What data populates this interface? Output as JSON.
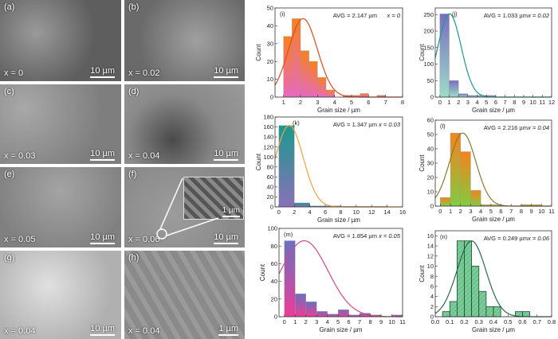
{
  "sem_panels": [
    {
      "id": "a",
      "label": "(a)",
      "x_text": "x = 0",
      "scale": "10 µm"
    },
    {
      "id": "b",
      "label": "(b)",
      "x_text": "x = 0.02",
      "scale": "10 µm"
    },
    {
      "id": "c",
      "label": "(c)",
      "x_text": "x = 0.03",
      "scale": "10 µm"
    },
    {
      "id": "d",
      "label": "(d)",
      "x_text": "x = 0.04",
      "scale": "10 µm"
    },
    {
      "id": "e",
      "label": "(e)",
      "x_text": "x = 0.05",
      "scale": "10 µm"
    },
    {
      "id": "f",
      "label": "(f)",
      "x_text": "x = 0.06",
      "scale": "10 µm",
      "inset_scale": "1 µm"
    },
    {
      "id": "g",
      "label": "(g)",
      "x_text": "x = 0.04",
      "scale": "10 µm"
    },
    {
      "id": "h",
      "label": "(h)",
      "x_text": "x = 0.04",
      "scale": "1 µm"
    }
  ],
  "chart_data": [
    {
      "type": "bar",
      "panel": "(i)",
      "avg": "AVG = 2.147 µm",
      "x_label": "x = 0",
      "xlabel": "Grain size / µm",
      "ylabel": "Count",
      "xlim": [
        0.5,
        8
      ],
      "ylim": [
        0,
        50
      ],
      "xticks": [
        1,
        2,
        3,
        4,
        5,
        6,
        7,
        8
      ],
      "yticks": [
        0,
        10,
        20,
        30,
        40,
        50
      ],
      "bin_start": 1,
      "bin_width": 0.5,
      "values": [
        34,
        44,
        26,
        20,
        11,
        4,
        0,
        1,
        1,
        2,
        0,
        1
      ],
      "fit": {
        "mean": 2.147,
        "sigma": 0.85,
        "peak": 44
      },
      "colors": {
        "top": "#f7821e",
        "bottom": "#e868c0",
        "curve": "#e04a20"
      }
    },
    {
      "type": "bar",
      "panel": "(j)",
      "avg": "AVG = 1.033 µm",
      "x_label": "x = 0.02",
      "xlabel": "Grain size / µm",
      "ylabel": "Count",
      "xlim": [
        -0.5,
        12
      ],
      "ylim": [
        0,
        270
      ],
      "xticks": [
        0,
        1,
        2,
        3,
        4,
        5,
        6,
        7,
        8,
        9,
        10,
        11,
        12
      ],
      "yticks": [
        0,
        50,
        100,
        150,
        200,
        250
      ],
      "bin_start": 0,
      "bin_width": 1,
      "values": [
        252,
        50,
        10,
        5,
        5,
        5
      ],
      "fit": {
        "mean": 1.033,
        "sigma": 1.25,
        "peak": 252
      },
      "colors": {
        "top": "#7a6ec0",
        "bottom": "#9ddcc8",
        "curve": "#1a9a8a"
      }
    },
    {
      "type": "bar",
      "panel": "(k)",
      "avg": "AVG = 1.347 µm",
      "x_label": "x = 0.03",
      "xlabel": "Grain size / µm",
      "ylabel": "Count",
      "xlim": [
        -0.5,
        16
      ],
      "ylim": [
        0,
        180
      ],
      "xticks": [
        0,
        2,
        4,
        6,
        8,
        10,
        12,
        14,
        16
      ],
      "yticks": [
        0,
        20,
        40,
        60,
        80,
        100,
        120,
        140,
        160,
        180
      ],
      "bin_start": 0,
      "bin_width": 2,
      "values": [
        163,
        8,
        2,
        2,
        1,
        1,
        1
      ],
      "fit": {
        "mean": 1.347,
        "sigma": 1.8,
        "peak": 163
      },
      "colors": {
        "top": "#1a9a90",
        "bottom": "#8a70b8",
        "curve": "#f0a040"
      }
    },
    {
      "type": "bar",
      "panel": "(l)",
      "avg": "AVG = 2.216 µm",
      "x_label": "x = 0.04",
      "xlabel": "Grain size / µm",
      "ylabel": "Count",
      "xlim": [
        -0.5,
        11
      ],
      "ylim": [
        0,
        60
      ],
      "xticks": [
        0,
        1,
        2,
        3,
        4,
        5,
        6,
        7,
        8,
        9,
        10,
        11
      ],
      "yticks": [
        0,
        10,
        20,
        30,
        40,
        50,
        60
      ],
      "bin_start": 0,
      "bin_width": 1,
      "values": [
        6,
        51,
        38,
        11,
        1,
        1,
        0,
        0,
        1,
        1
      ],
      "fit": {
        "mean": 2.216,
        "sigma": 1.3,
        "peak": 51
      },
      "colors": {
        "top": "#f7821e",
        "bottom": "#80cc40",
        "curve": "#8a7a30"
      }
    },
    {
      "type": "bar",
      "panel": "(m)",
      "avg": "AVG = 1.854 µm",
      "x_label": "x = 0.05",
      "xlabel": "Grain size / µm",
      "ylabel": "Count",
      "xlim": [
        -0.5,
        11
      ],
      "ylim": [
        0,
        100
      ],
      "xticks": [
        0,
        1,
        2,
        3,
        4,
        5,
        6,
        7,
        8,
        9,
        10,
        11
      ],
      "yticks": [
        0,
        20,
        40,
        60,
        80,
        100
      ],
      "bin_start": 0,
      "bin_width": 1,
      "values": [
        86,
        26,
        17,
        6,
        3,
        8,
        2,
        4,
        2,
        0,
        2
      ],
      "fit": {
        "mean": 1.854,
        "sigma": 2.2,
        "peak": 86
      },
      "colors": {
        "top": "#6a70c0",
        "bottom": "#ee3c96",
        "curve": "#d04a8a"
      }
    },
    {
      "type": "bar",
      "panel": "(n)",
      "avg": "AVG = 0.249 µm",
      "x_label": "x = 0.06",
      "xlabel": "Grain size / µm",
      "ylabel": "Count",
      "xlim": [
        0,
        0.8
      ],
      "ylim": [
        0,
        17
      ],
      "xticks": [
        0.0,
        0.1,
        0.2,
        0.3,
        0.4,
        0.5,
        0.6,
        0.7,
        0.8
      ],
      "yticks": [
        0,
        2,
        4,
        6,
        8,
        10,
        12,
        14,
        16
      ],
      "bin_start": 0.05,
      "bin_width": 0.05,
      "values": [
        1,
        3,
        15,
        15,
        10,
        5,
        2,
        2,
        0,
        0,
        1,
        1
      ],
      "fit": {
        "mean": 0.249,
        "sigma": 0.1,
        "peak": 15
      },
      "colors": {
        "top": "#7acc98",
        "bottom": "#7acc98",
        "curve": "#2a6a4a"
      }
    }
  ]
}
